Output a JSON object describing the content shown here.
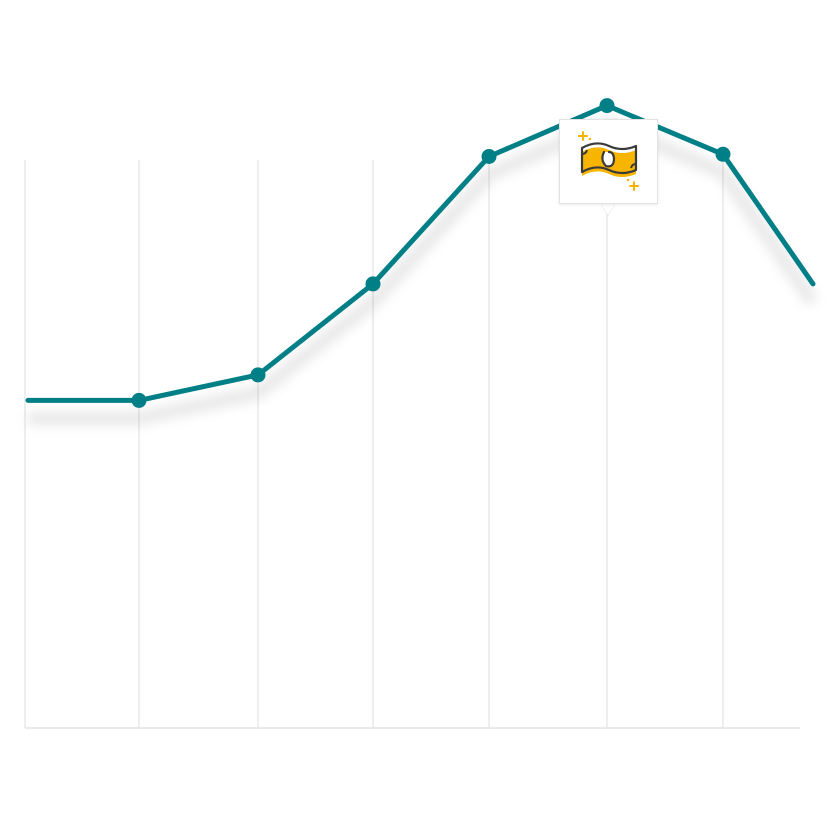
{
  "chart_data": {
    "type": "line",
    "x": [
      1,
      2,
      3,
      4,
      5,
      6,
      7,
      8
    ],
    "series": [
      {
        "values": [
          2.0,
          2.0,
          2.35,
          3.6,
          5.35,
          6.05,
          5.38,
          3.6
        ]
      }
    ],
    "xlim": [
      1,
      8
    ],
    "ylim": [
      -2.5,
      7.5
    ],
    "grid": "vertical",
    "line_color": "#007f86",
    "annotation": {
      "index": 5,
      "icon": "money-bill-icon",
      "accent": "#f7b500"
    }
  }
}
